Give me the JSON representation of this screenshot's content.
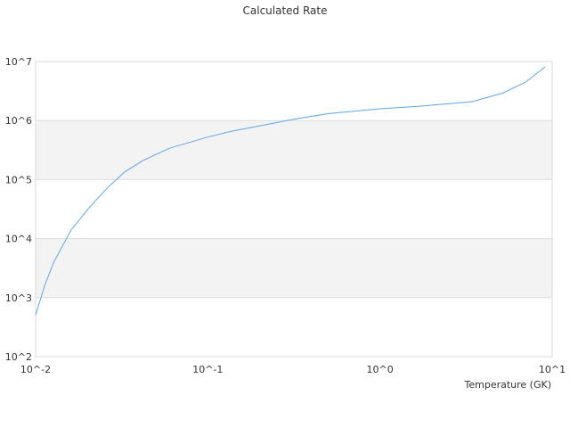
{
  "chart_data": {
    "type": "line",
    "title": "Calculated Rate",
    "xlabel": "Temperature (GK)",
    "ylabel": "",
    "x_scale": "log",
    "y_scale": "log",
    "xlim": [
      0.01,
      10
    ],
    "ylim": [
      100,
      10000000
    ],
    "x_ticks": [
      "10^-2",
      "10^-1",
      "10^0",
      "10^1"
    ],
    "y_ticks": [
      "10^2",
      "10^3",
      "10^4",
      "10^5",
      "10^6",
      "10^7"
    ],
    "grid": true,
    "alternating_bands": true,
    "line_color": "#5aa5ec",
    "band_color": "#f3f3f3",
    "grid_color": "#dddddd",
    "series": [
      {
        "x": [
          0.01,
          0.0113,
          0.0127,
          0.0161,
          0.0204,
          0.0259,
          0.0329,
          0.0418,
          0.0597,
          0.1,
          0.138,
          0.316,
          0.509,
          1.0,
          1.67,
          3.43,
          5.2,
          7.0,
          9.1
        ],
        "y": [
          510,
          1620,
          3890,
          14100,
          33100,
          70800,
          135000,
          209000,
          339000,
          525000,
          661000,
          1050000,
          1320000,
          1580000,
          1740000,
          2090000,
          2950000,
          4470000,
          8130000
        ]
      }
    ]
  }
}
